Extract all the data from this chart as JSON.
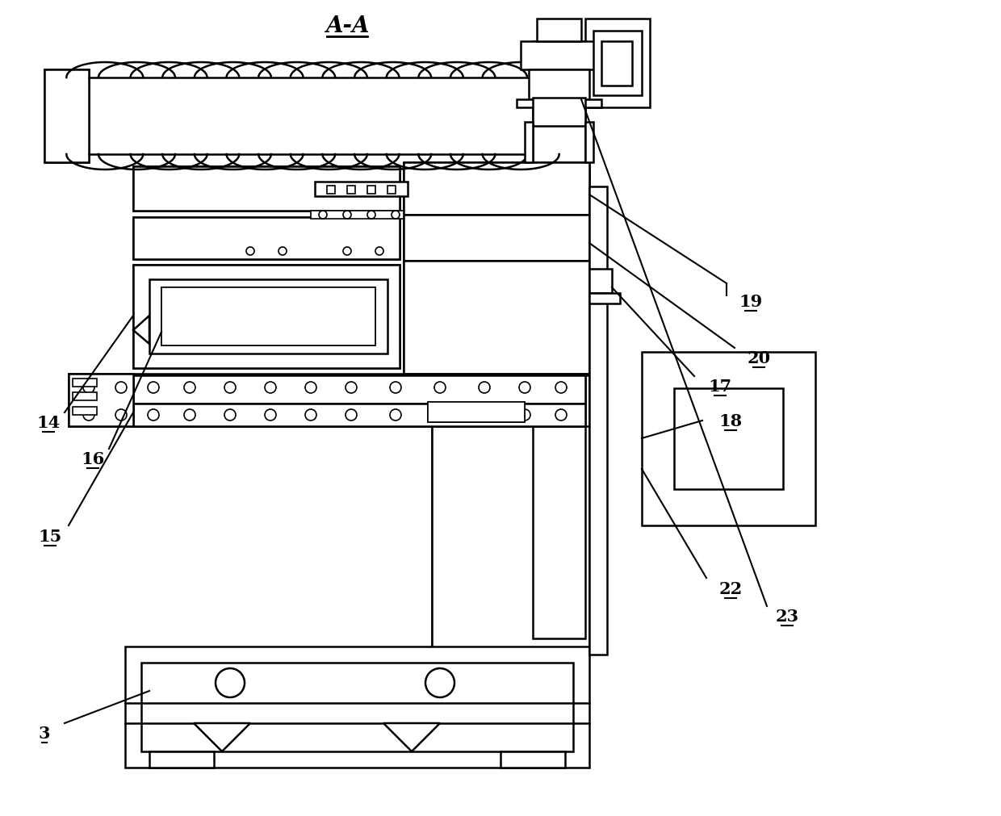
{
  "title": "A-A",
  "bg_color": "#ffffff",
  "line_color": "#000000",
  "fig_width": 12.4,
  "fig_height": 10.12,
  "lw_thin": 1.2,
  "lw_main": 1.8,
  "lw_thick": 2.2
}
